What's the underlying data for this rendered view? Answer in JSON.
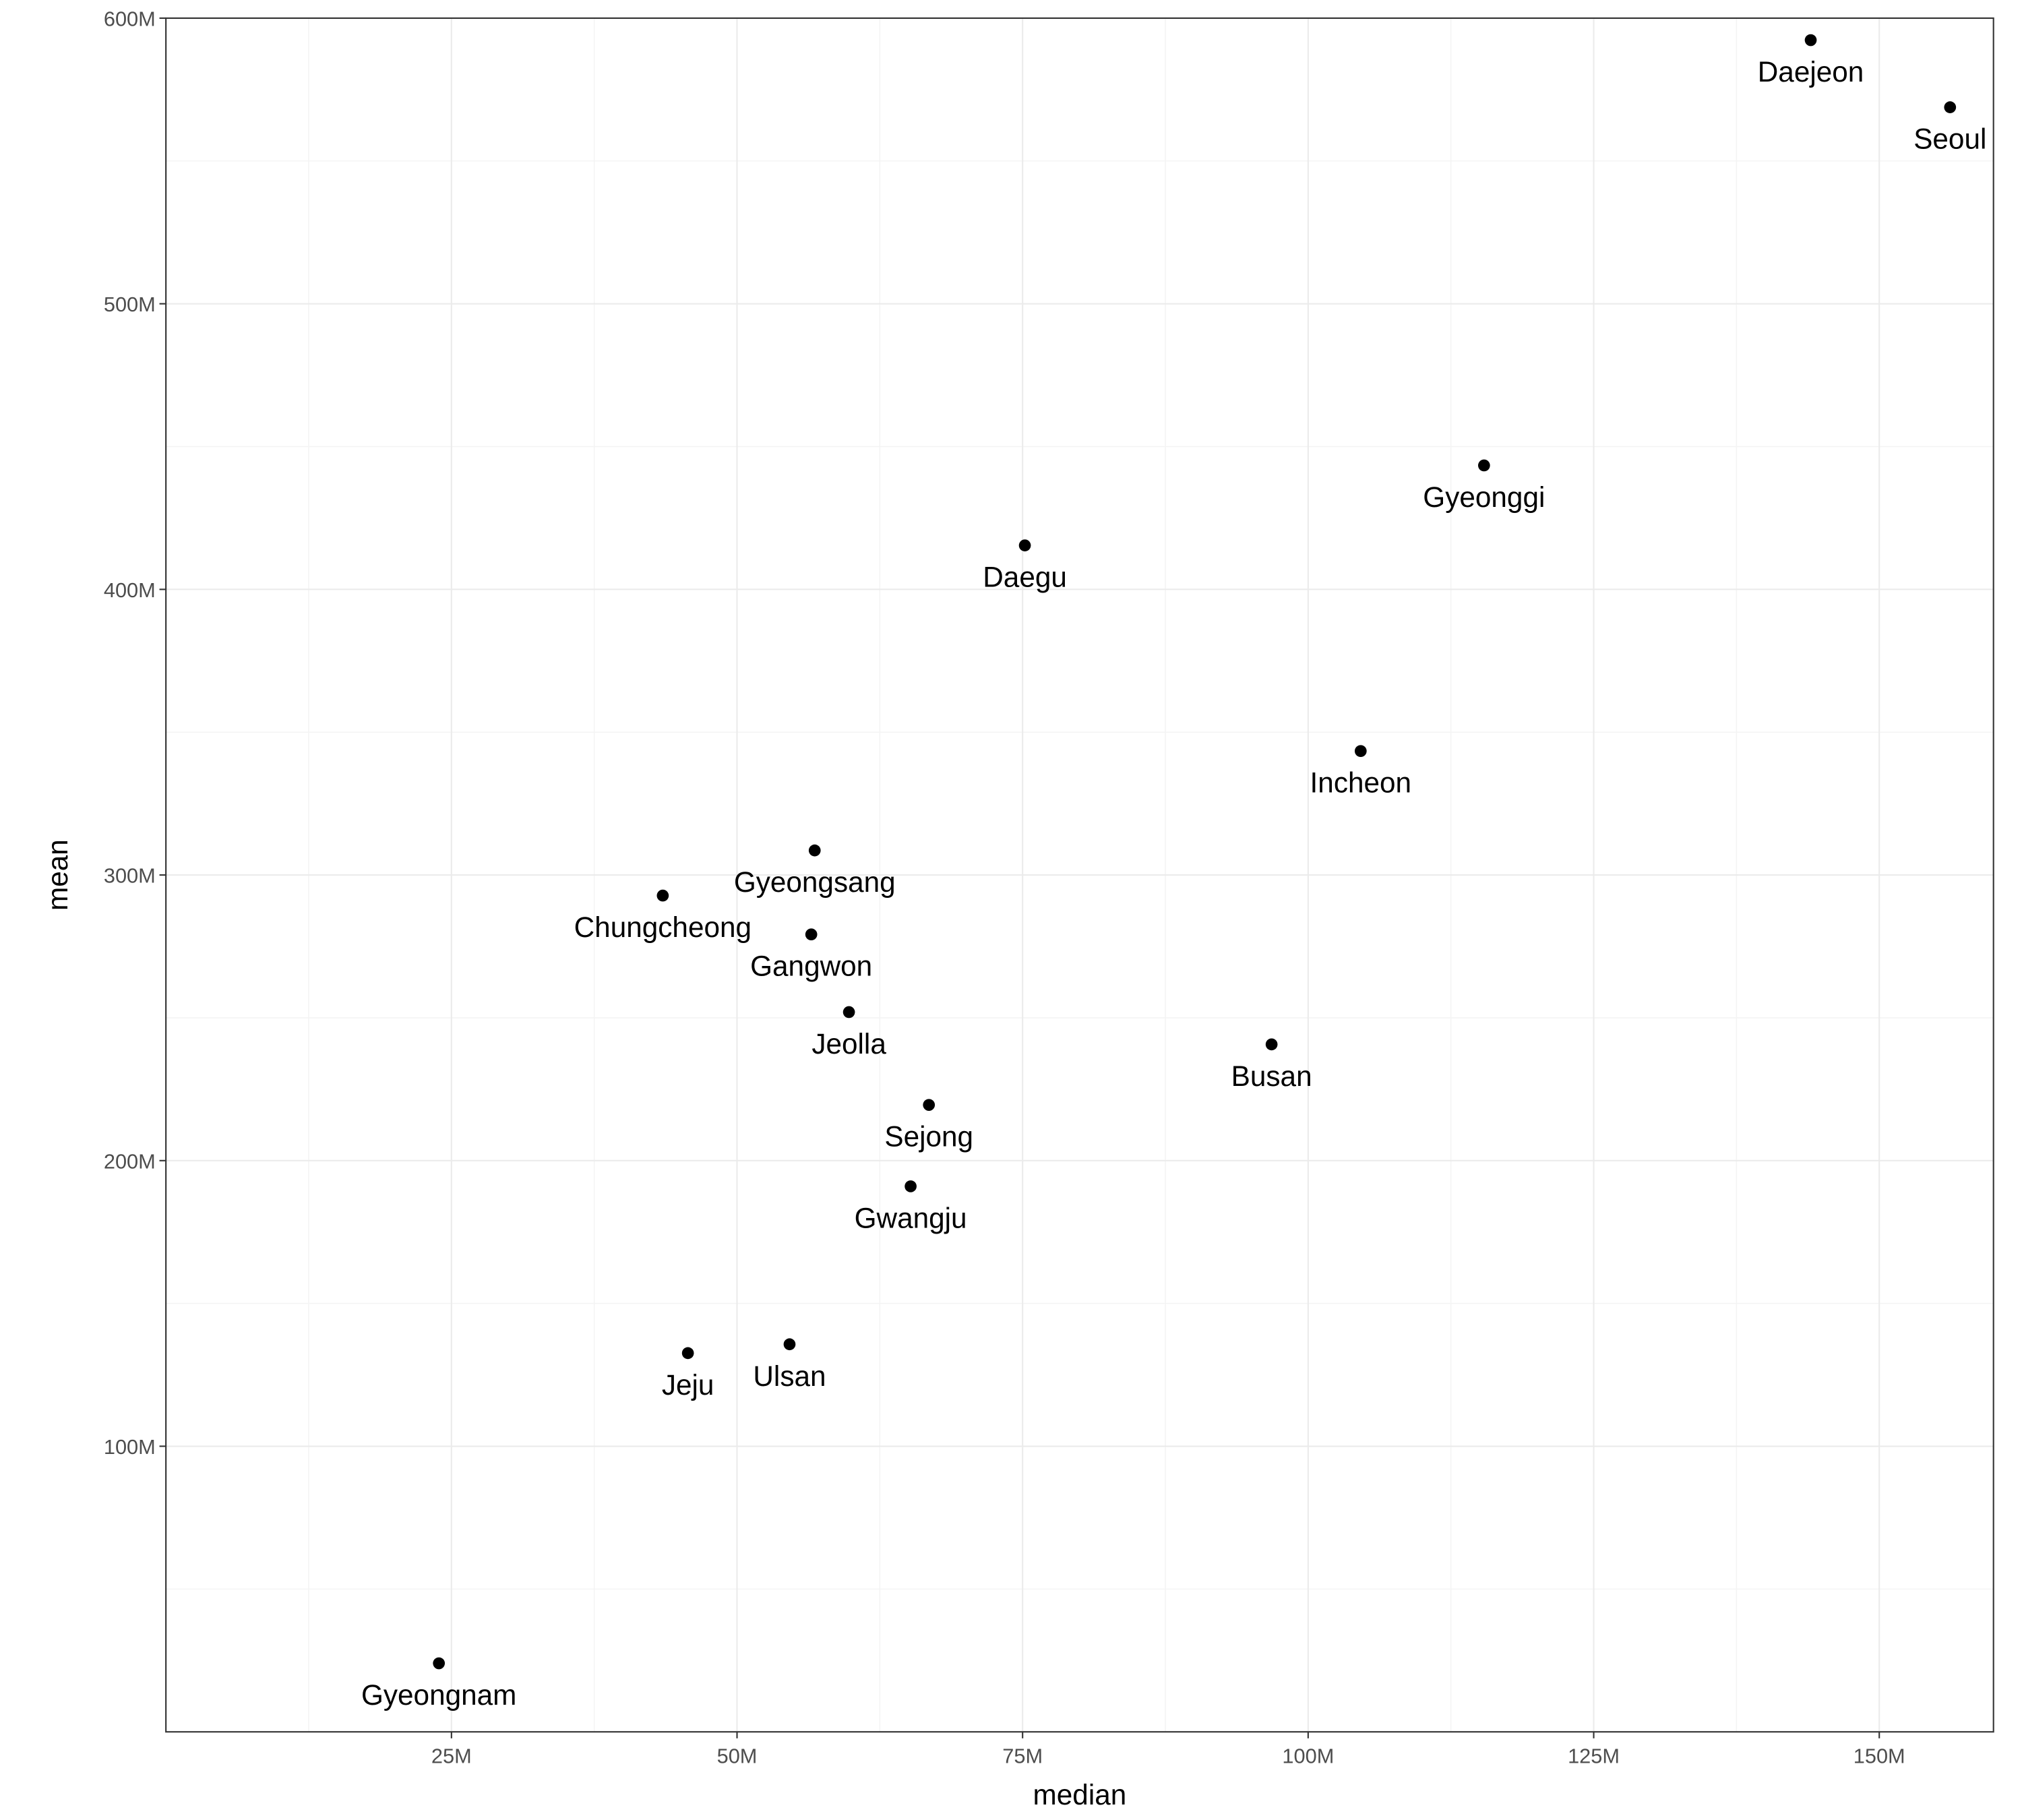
{
  "chart_data": {
    "type": "scatter",
    "title": "",
    "xlabel": "median",
    "ylabel": "mean",
    "xlim": [
      0,
      160
    ],
    "ylim": [
      0,
      600
    ],
    "unit_suffix": "M",
    "grid": true,
    "x_ticks": [
      25,
      50,
      75,
      100,
      125,
      150
    ],
    "x_tick_labels": [
      "25M",
      "50M",
      "75M",
      "100M",
      "125M",
      "150M"
    ],
    "y_ticks": [
      100,
      200,
      300,
      400,
      500,
      600
    ],
    "y_tick_labels": [
      "100M",
      "200M",
      "300M",
      "400M",
      "500M",
      "600M"
    ],
    "point_color": "#000000",
    "points": [
      {
        "label": "Daejeon",
        "x": 144.0,
        "y": 592.3
      },
      {
        "label": "Seoul",
        "x": 156.2,
        "y": 568.8
      },
      {
        "label": "Gyeonggi",
        "x": 115.4,
        "y": 443.4
      },
      {
        "label": "Daegu",
        "x": 75.2,
        "y": 415.4
      },
      {
        "label": "Incheon",
        "x": 104.6,
        "y": 343.4
      },
      {
        "label": "Gyeongsang",
        "x": 56.8,
        "y": 308.6
      },
      {
        "label": "Chungcheong",
        "x": 43.5,
        "y": 292.8
      },
      {
        "label": "Gangwon",
        "x": 56.5,
        "y": 279.2
      },
      {
        "label": "Jeolla",
        "x": 59.8,
        "y": 252.0
      },
      {
        "label": "Busan",
        "x": 96.8,
        "y": 240.7
      },
      {
        "label": "Sejong",
        "x": 66.8,
        "y": 219.5
      },
      {
        "label": "Gwangju",
        "x": 65.2,
        "y": 191.0
      },
      {
        "label": "Ulsan",
        "x": 54.6,
        "y": 135.7
      },
      {
        "label": "Jeju",
        "x": 45.7,
        "y": 132.6
      },
      {
        "label": "Gyeongnam",
        "x": 23.9,
        "y": 24.0
      }
    ]
  }
}
